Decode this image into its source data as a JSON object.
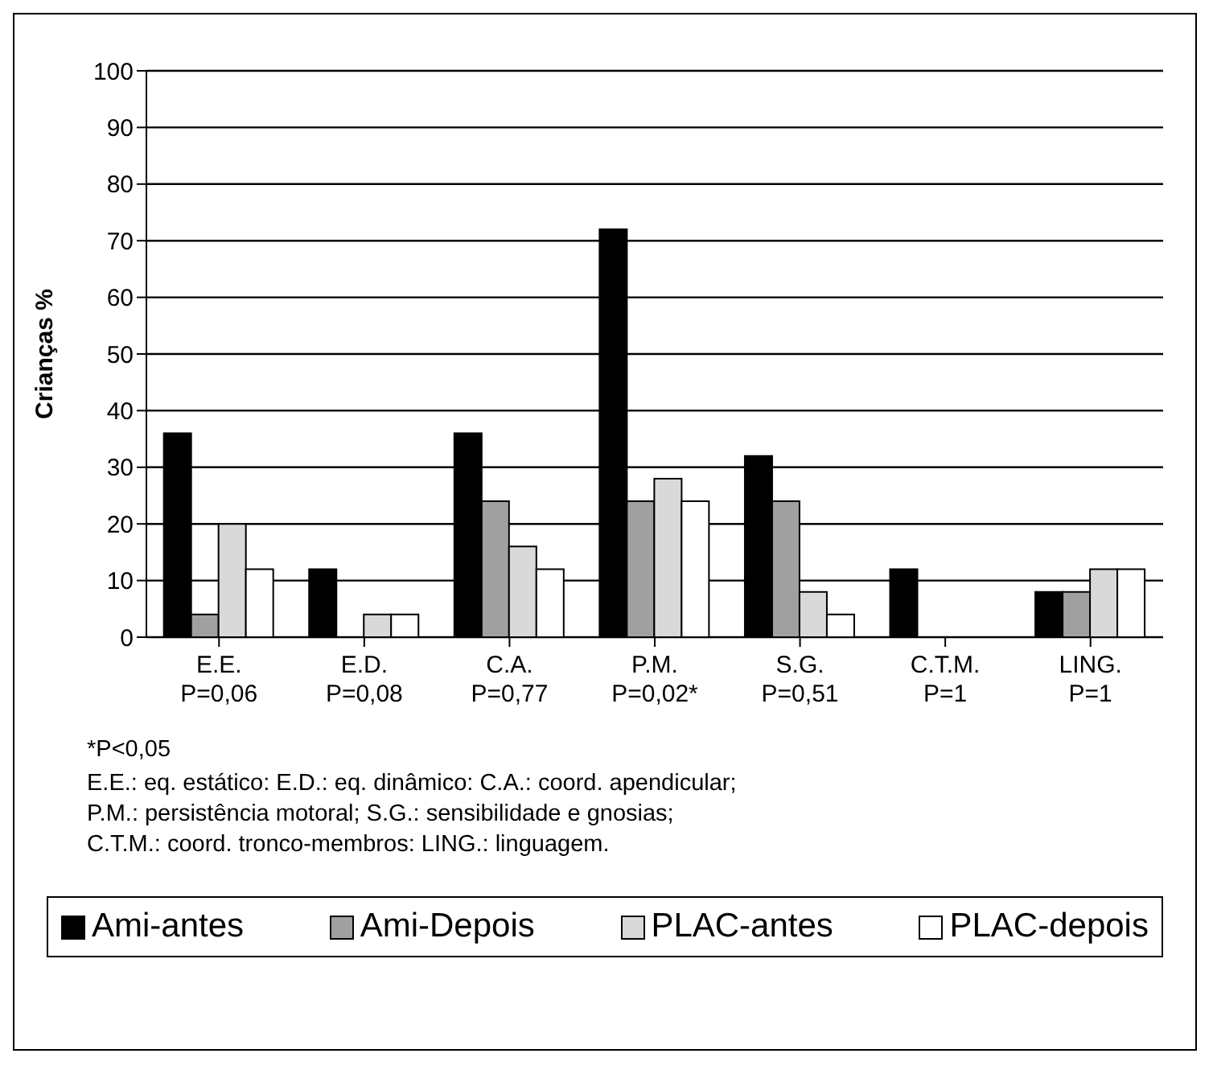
{
  "chart_data": {
    "type": "bar",
    "ylabel": "Crianças %",
    "categories": [
      "E.E.\nP=0,06",
      "E.D.\nP=0,08",
      "C.A.\nP=0,77",
      "P.M.\nP=0,02*",
      "S.G.\nP=0,51",
      "C.T.M.\nP=1",
      "LING.\nP=1"
    ],
    "series": [
      {
        "name": "Ami-antes",
        "color": "#000000",
        "values": [
          36,
          12,
          36,
          72,
          32,
          12,
          8
        ]
      },
      {
        "name": "Ami-Depois",
        "color": "#a0a0a0",
        "values": [
          4,
          0,
          24,
          24,
          24,
          0,
          8
        ]
      },
      {
        "name": "PLAC-antes",
        "color": "#d9d9d9",
        "values": [
          20,
          4,
          16,
          28,
          8,
          0,
          12
        ]
      },
      {
        "name": "PLAC-depois",
        "color": "#ffffff",
        "values": [
          12,
          4,
          12,
          24,
          4,
          0,
          12
        ]
      }
    ],
    "ylim": [
      0,
      100
    ],
    "yticks": [
      0,
      10,
      20,
      30,
      40,
      50,
      60,
      70,
      80,
      90,
      100
    ],
    "grid": "y",
    "legend": "bottom",
    "annotations": [
      "*P<0,05",
      "E.E.: eq. estático: E.D.: eq. dinâmico: C.A.: coord. apendicular;",
      "P.M.: persistência motoral; S.G.: sensibilidade e gnosias;",
      "C.T.M.: coord. tronco-membros: LING.: linguagem."
    ]
  }
}
